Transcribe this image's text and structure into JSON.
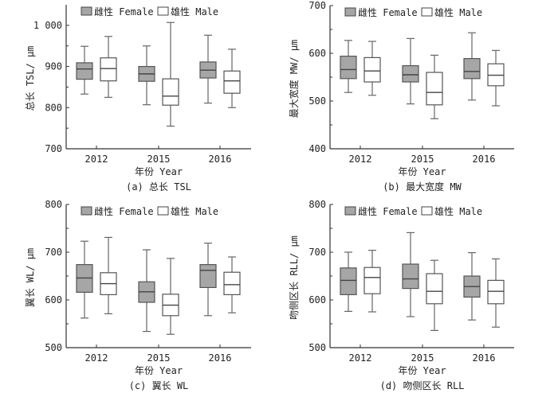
{
  "colors": {
    "female_fill": "#a6a6a6",
    "male_fill": "#ffffff",
    "box_stroke": "#555555",
    "axis": "#333333"
  },
  "chart_data": [
    {
      "type": "box",
      "caption": "(a) 总长 TSL",
      "xlabel": "年份 Year",
      "ylabel": "总长 TSL/ μm",
      "categories": [
        "2012",
        "2015",
        "2016"
      ],
      "ylim": [
        700,
        1050
      ],
      "yticks": [
        700,
        800,
        900,
        1000
      ],
      "ytick_labels": [
        "700",
        "800",
        "900",
        "1 000"
      ],
      "legend": "top",
      "series": [
        {
          "name": "雌性 Female",
          "boxes": [
            {
              "min": 833,
              "q1": 869,
              "median": 894,
              "q3": 909,
              "max": 949
            },
            {
              "min": 807,
              "q1": 864,
              "median": 882,
              "q3": 900,
              "max": 950
            },
            {
              "min": 811,
              "q1": 872,
              "median": 891,
              "q3": 911,
              "max": 976
            }
          ]
        },
        {
          "name": "雄性 Male",
          "boxes": [
            {
              "min": 825,
              "q1": 865,
              "median": 895,
              "q3": 921,
              "max": 973
            },
            {
              "min": 755,
              "q1": 806,
              "median": 828,
              "q3": 870,
              "max": 1007
            },
            {
              "min": 800,
              "q1": 835,
              "median": 865,
              "q3": 889,
              "max": 942
            }
          ]
        }
      ]
    },
    {
      "type": "box",
      "caption": "(b) 最大宽度 MW",
      "xlabel": "年份 Year",
      "ylabel": "最大宽度 MW/ μm",
      "categories": [
        "2012",
        "2015",
        "2016"
      ],
      "ylim": [
        400,
        700
      ],
      "yticks": [
        400,
        500,
        600,
        700
      ],
      "ytick_labels": [
        "400",
        "500",
        "600",
        "700"
      ],
      "legend": "top",
      "series": [
        {
          "name": "雌性 Female",
          "boxes": [
            {
              "min": 518,
              "q1": 547,
              "median": 566,
              "q3": 594,
              "max": 627
            },
            {
              "min": 494,
              "q1": 540,
              "median": 555,
              "q3": 574,
              "max": 631
            },
            {
              "min": 502,
              "q1": 547,
              "median": 562,
              "q3": 589,
              "max": 643
            }
          ]
        },
        {
          "name": "雄性 Male",
          "boxes": [
            {
              "min": 512,
              "q1": 540,
              "median": 563,
              "q3": 591,
              "max": 625
            },
            {
              "min": 463,
              "q1": 492,
              "median": 518,
              "q3": 560,
              "max": 596
            },
            {
              "min": 490,
              "q1": 532,
              "median": 554,
              "q3": 578,
              "max": 606
            }
          ]
        }
      ]
    },
    {
      "type": "box",
      "caption": "(c) 翼长 WL",
      "xlabel": "年份 Year",
      "ylabel": "翼长 WL/ μm",
      "categories": [
        "2012",
        "2015",
        "2016"
      ],
      "ylim": [
        500,
        800
      ],
      "yticks": [
        500,
        600,
        700,
        800
      ],
      "ytick_labels": [
        "500",
        "600",
        "700",
        "800"
      ],
      "legend": "top",
      "series": [
        {
          "name": "雌性 Female",
          "boxes": [
            {
              "min": 562,
              "q1": 616,
              "median": 646,
              "q3": 674,
              "max": 723
            },
            {
              "min": 534,
              "q1": 595,
              "median": 617,
              "q3": 638,
              "max": 705
            },
            {
              "min": 567,
              "q1": 626,
              "median": 662,
              "q3": 674,
              "max": 719
            }
          ]
        },
        {
          "name": "雄性 Male",
          "boxes": [
            {
              "min": 571,
              "q1": 611,
              "median": 634,
              "q3": 657,
              "max": 731
            },
            {
              "min": 528,
              "q1": 567,
              "median": 589,
              "q3": 612,
              "max": 687
            },
            {
              "min": 573,
              "q1": 611,
              "median": 632,
              "q3": 658,
              "max": 690
            }
          ]
        }
      ]
    },
    {
      "type": "box",
      "caption": "(d) 吻侧区长 RLL",
      "xlabel": "年份 Year",
      "ylabel": "吻侧区长 RLL/ μm",
      "categories": [
        "2012",
        "2015",
        "2016"
      ],
      "ylim": [
        500,
        800
      ],
      "yticks": [
        500,
        600,
        700,
        800
      ],
      "ytick_labels": [
        "500",
        "600",
        "700",
        "800"
      ],
      "legend": "top",
      "series": [
        {
          "name": "雌性 Female",
          "boxes": [
            {
              "min": 576,
              "q1": 611,
              "median": 641,
              "q3": 667,
              "max": 700
            },
            {
              "min": 565,
              "q1": 624,
              "median": 644,
              "q3": 675,
              "max": 741
            },
            {
              "min": 558,
              "q1": 606,
              "median": 628,
              "q3": 650,
              "max": 699
            }
          ]
        },
        {
          "name": "雄性 Male",
          "boxes": [
            {
              "min": 575,
              "q1": 613,
              "median": 647,
              "q3": 668,
              "max": 704
            },
            {
              "min": 536,
              "q1": 592,
              "median": 618,
              "q3": 655,
              "max": 683
            },
            {
              "min": 543,
              "q1": 592,
              "median": 618,
              "q3": 641,
              "max": 686
            }
          ]
        }
      ]
    }
  ]
}
